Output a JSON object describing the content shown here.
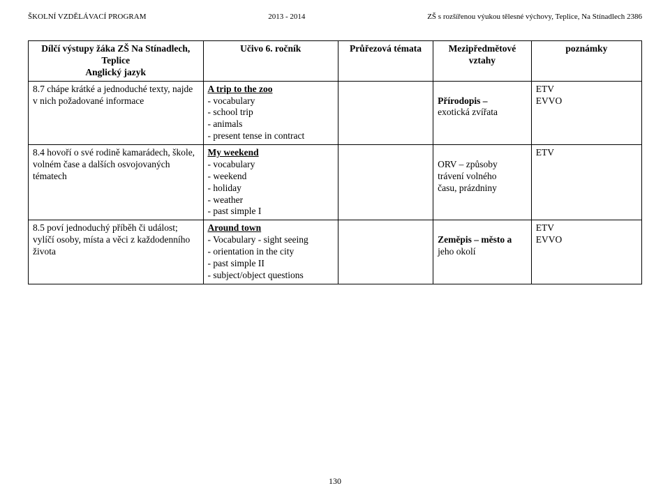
{
  "header": {
    "left": "ŠKOLNÍ VZDĚLÁVACÍ PROGRAM",
    "center": "2013 - 2014",
    "right": "ZŠ s rozšířenou výukou tělesné výchovy, Teplice, Na Stínadlech 2386"
  },
  "columns": {
    "c1_line1": "Dílčí výstupy žáka ZŠ Na Stínadlech, Teplice",
    "c1_line2": "Anglický jazyk",
    "c2": "Učivo 6. ročník",
    "c3": "Průřezová témata",
    "c4_line1": "Mezipředmětové",
    "c4_line2": "vztahy",
    "c5": "poznámky"
  },
  "rows": [
    {
      "col1": {
        "lead": "8.7 chápe krátké a jednoduché texty, najde v nich požadované informace"
      },
      "col2": {
        "title": "A trip to the zoo",
        "items": [
          "- vocabulary",
          "- school trip",
          "- animals",
          "- present tense in contract"
        ]
      },
      "col3": "",
      "col4": [
        "Přírodopis –",
        "exotická zvířata"
      ],
      "col5": [
        "ETV",
        "EVVO"
      ]
    },
    {
      "col1": {
        "lead": "8.4 hovoří o své rodině kamarádech, škole, volném čase a dalších osvojovaných tématech"
      },
      "col2": {
        "title": "My weekend",
        "items": [
          "- vocabulary",
          "- weekend",
          "- holiday",
          "- weather",
          "- past simple I"
        ]
      },
      "col3": "",
      "col4": [
        "ORV – způsoby",
        "trávení volného",
        "času, prázdniny"
      ],
      "col5": [
        "ETV"
      ]
    },
    {
      "col1": {
        "lead": "8.5 poví jednoduchý příběh či událost; vylíčí osoby, místa a věci z každodenního života"
      },
      "col2": {
        "title": "Around town",
        "items": [
          "- Vocabulary - sight seeing",
          "- orientation in the city",
          "- past simple II",
          "- subject/object questions"
        ]
      },
      "col3": "",
      "col4": [
        "Zeměpis – město a",
        "jeho okolí"
      ],
      "col5": [
        "ETV",
        "EVVO"
      ]
    }
  ],
  "page_number": "130"
}
